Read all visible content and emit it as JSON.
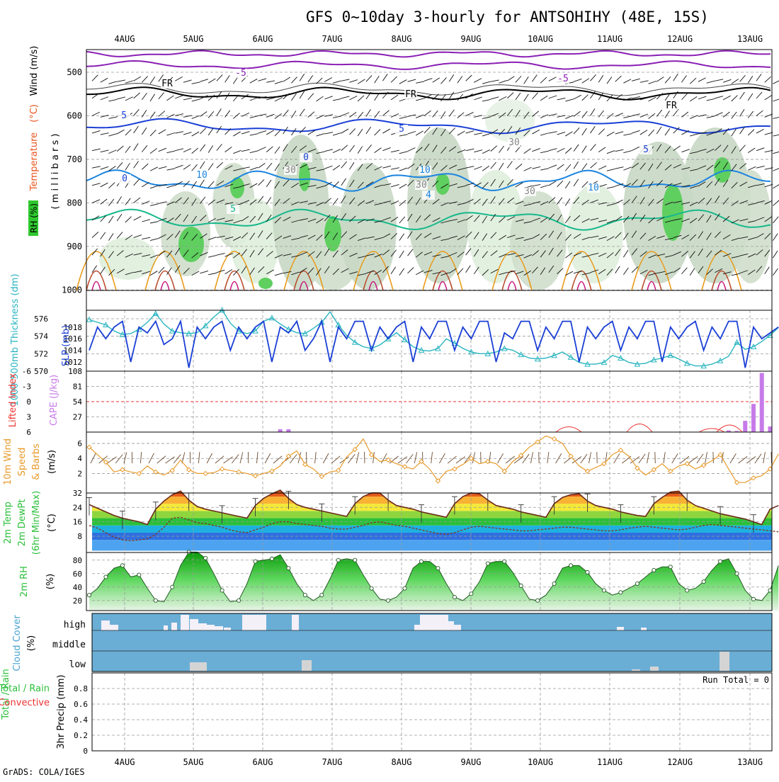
{
  "title": "GFS 0~10day 3-hourly for ANTSOHIHY (48E, 15S)",
  "credit": "GrADS: COLA/IGES",
  "chart_data": {
    "type": "meteogram",
    "date_labels": [
      "4AUG",
      "5AUG",
      "6AUG",
      "7AUG",
      "8AUG",
      "9AUG",
      "10AUG",
      "11AUG",
      "12AUG",
      "13AUG"
    ],
    "panels": {
      "upper_air": {
        "ylabel_parts": [
          "RH (%)",
          "Temperature",
          "(°C)",
          "Wind (m/s)"
        ],
        "axis_label": "( m i l l i b a r s )",
        "pressure_ticks": [
          500,
          600,
          700,
          800,
          900,
          1000
        ],
        "contour_labels": [
          "-5",
          "-5",
          "FR",
          "FR",
          "FR",
          "5",
          "5",
          "5",
          "10",
          "10",
          "10",
          "0",
          "0",
          "4",
          "30",
          "30",
          "30",
          "30",
          "5"
        ]
      },
      "thickness_slp": {
        "ylabel_thickness": "1000-500mb Thickness (dm)",
        "ylabel_slp": "SLP (mb)",
        "thickness_ticks": [
          570,
          572,
          574,
          576
        ],
        "slp_ticks": [
          1012,
          1014,
          1016,
          1018
        ],
        "slp_values": [
          1014,
          1018,
          1016,
          1018,
          1019,
          1012,
          1018,
          1017,
          1019,
          1015,
          1016,
          1019,
          1011,
          1018,
          1016,
          1018,
          1019,
          1014,
          1018,
          1016,
          1018,
          1019,
          1012,
          1018,
          1017,
          1019,
          1014,
          1016,
          1019,
          1012,
          1018,
          1016,
          1019,
          1019,
          1014,
          1018,
          1016,
          1018,
          1019,
          1012,
          1018,
          1016,
          1019,
          1019,
          1014,
          1018,
          1016,
          1019,
          1019,
          1012,
          1017,
          1016,
          1019,
          1019,
          1014,
          1018,
          1016,
          1019,
          1019,
          1012,
          1018,
          1016,
          1018,
          1019,
          1014,
          1018,
          1016,
          1019,
          1019,
          1012,
          1018,
          1016,
          1018,
          1019,
          1014,
          1018,
          1016,
          1019,
          1019,
          1011,
          1018,
          1016,
          1017,
          1018
        ],
        "thickness_values": [
          575.9,
          575.6,
          575.3,
          574.6,
          574.2,
          574.3,
          574.8,
          575.6,
          576.6,
          575.4,
          574.6,
          574.4,
          574.3,
          574.4,
          575.2,
          576.2,
          577.0,
          575.5,
          574.6,
          574.3,
          574.6,
          575.7,
          576.1,
          575.4,
          574.8,
          574.4,
          574.3,
          574.9,
          575.6,
          576.8,
          575.3,
          574.1,
          573.3,
          572.8,
          572.6,
          573.0,
          573.7,
          574.4,
          573.6,
          572.8,
          572.4,
          572.3,
          572.6,
          573.7,
          573.2,
          572.6,
          572.2,
          572.0,
          572.0,
          572.2,
          572.6,
          572.4,
          571.9,
          571.5,
          571.4,
          571.5,
          571.8,
          572.2,
          571.6,
          571.0,
          570.8,
          570.8,
          571.0,
          571.8,
          571.5,
          571.0,
          570.8,
          570.9,
          571.3,
          571.5,
          571.8,
          571.4,
          570.9,
          570.6,
          570.6,
          570.8,
          571.2,
          571.7,
          573.3,
          572.5,
          572.8,
          573.4,
          574.1,
          575.0
        ]
      },
      "cape_li": {
        "ylabel_li": "Lifted Index",
        "ylabel_cape": "CAPE (J/kg)",
        "li_ticks": [
          "6",
          "3",
          "0",
          "-3",
          "-6"
        ],
        "cape_ticks": [
          27,
          54,
          81,
          108
        ],
        "cape_values": [
          0,
          0,
          0,
          0,
          0,
          0,
          0,
          0,
          0,
          0,
          0,
          0,
          0,
          0,
          0,
          0,
          0,
          0,
          0,
          0,
          0,
          0,
          0,
          5,
          5,
          0,
          0,
          0,
          0,
          0,
          0,
          0,
          0,
          0,
          0,
          0,
          0,
          0,
          0,
          0,
          0,
          0,
          0,
          0,
          0,
          0,
          0,
          0,
          0,
          0,
          0,
          0,
          0,
          0,
          0,
          0,
          0,
          0,
          0,
          0,
          0,
          0,
          0,
          0,
          0,
          0,
          0,
          0,
          0,
          0,
          0,
          0,
          0,
          0,
          0,
          0,
          0,
          3,
          2,
          20,
          50,
          105,
          10,
          0
        ]
      },
      "wind10m": {
        "ylabel": "10m Wind Speed & Barbs (m/s)",
        "ticks": [
          2,
          4,
          6
        ],
        "values": [
          5.5,
          4.5,
          3.5,
          2.2,
          2.5,
          2.2,
          2.0,
          3.0,
          2.2,
          1.8,
          2.4,
          3.8,
          2.5,
          2.0,
          2.0,
          2.1,
          2.6,
          2.4,
          2.2,
          2.0,
          1.7,
          2.0,
          2.3,
          3.0,
          4.3,
          5.0,
          3.2,
          2.6,
          1.6,
          2.2,
          2.4,
          4.2,
          5.2,
          6.6,
          4.5,
          3.6,
          3.8,
          3.3,
          2.9,
          2.6,
          3.6,
          2.6,
          1.0,
          2.3,
          2.6,
          3.2,
          4.0,
          3.3,
          3.6,
          3.3,
          2.3,
          3.6,
          4.4,
          5.5,
          6.2,
          7.0,
          6.6,
          6.0,
          4.3,
          3.0,
          2.3,
          2.8,
          3.3,
          4.5,
          5.1,
          4.3,
          2.7,
          1.8,
          2.5,
          3.3,
          2.3,
          3.0,
          3.3,
          2.6,
          3.1,
          3.7,
          4.5,
          2.6,
          0.8,
          0.8,
          1.4,
          1.7,
          2.6,
          4.6
        ]
      },
      "temp2m": {
        "ylabel": "2m Temp 2m DewPt (6hr Min/Max) (°C)",
        "ticks": [
          8,
          16,
          24,
          32
        ],
        "temp_values": [
          25.5,
          23.5,
          21.5,
          19.5,
          18.0,
          17.0,
          16.0,
          14.5,
          23.0,
          27.5,
          31.0,
          33.0,
          28.0,
          24.5,
          23.0,
          22.0,
          21.0,
          20.0,
          19.0,
          18.0,
          25.0,
          29.0,
          31.5,
          33.5,
          29.0,
          25.5,
          24.0,
          23.0,
          22.0,
          21.0,
          20.0,
          19.0,
          26.0,
          30.0,
          32.0,
          32.0,
          28.0,
          25.0,
          24.0,
          23.0,
          21.5,
          20.5,
          19.5,
          18.5,
          26.0,
          30.0,
          32.0,
          31.5,
          28.0,
          25.0,
          24.0,
          23.0,
          21.5,
          20.5,
          19.5,
          18.5,
          26.0,
          29.5,
          31.0,
          31.5,
          27.5,
          25.0,
          24.0,
          23.0,
          21.5,
          20.5,
          19.5,
          19.0,
          26.0,
          29.5,
          32.5,
          33.0,
          28.0,
          25.0,
          23.5,
          22.0,
          20.5,
          19.5,
          18.5,
          17.5,
          16.0,
          14.5,
          23.0,
          25.0
        ],
        "dewpt_values": [
          14.0,
          12.5,
          10.0,
          7.5,
          6.0,
          5.5,
          6.0,
          6.5,
          9.0,
          13.0,
          18.0,
          18.5,
          17.0,
          15.5,
          15.0,
          14.0,
          13.0,
          11.5,
          10.5,
          10.0,
          11.5,
          13.0,
          15.0,
          16.0,
          16.0,
          15.0,
          14.5,
          14.0,
          13.5,
          12.5,
          12.0,
          12.0,
          13.0,
          14.0,
          15.5,
          16.0,
          15.0,
          14.0,
          13.5,
          12.5,
          11.5,
          10.5,
          9.5,
          9.0,
          10.0,
          11.5,
          13.0,
          13.5,
          13.0,
          12.5,
          12.0,
          11.5,
          11.0,
          11.0,
          11.5,
          12.0,
          12.5,
          13.0,
          13.0,
          12.5,
          12.0,
          11.5,
          11.0,
          11.0,
          11.5,
          12.5,
          13.0,
          13.5,
          13.0,
          12.5,
          12.0,
          11.5,
          12.0,
          13.0,
          14.0,
          14.5,
          14.0,
          13.5,
          13.0,
          12.5,
          12.0,
          11.5,
          11.0,
          10.5
        ]
      },
      "rh2m": {
        "ylabel": "2m RH (%)",
        "ticks": [
          20,
          40,
          60,
          80
        ],
        "values": [
          28,
          38,
          55,
          68,
          72,
          55,
          58,
          38,
          20,
          18,
          40,
          72,
          92,
          92,
          83,
          60,
          35,
          18,
          20,
          45,
          78,
          80,
          82,
          88,
          68,
          45,
          28,
          20,
          28,
          52,
          80,
          82,
          80,
          58,
          38,
          22,
          20,
          25,
          38,
          68,
          78,
          78,
          68,
          45,
          25,
          20,
          30,
          48,
          75,
          78,
          78,
          62,
          42,
          22,
          20,
          28,
          45,
          68,
          72,
          72,
          62,
          45,
          35,
          28,
          32,
          38,
          45,
          55,
          65,
          70,
          70,
          45,
          35,
          38,
          48,
          65,
          78,
          82,
          60,
          35,
          22,
          20,
          35,
          72
        ]
      },
      "cloud": {
        "ylabel": "Cloud Cover (%)",
        "levels": [
          "high",
          "middle",
          "low"
        ]
      },
      "precip": {
        "ylabel": "3hr Precip (mm)",
        "ylabel_total": "Total / Rain",
        "ylabel_conv": "Convective",
        "ticks": [
          "0",
          "0.2",
          "0.4",
          "0.6",
          "0.8"
        ],
        "run_total": "Run Total = 0"
      }
    }
  }
}
